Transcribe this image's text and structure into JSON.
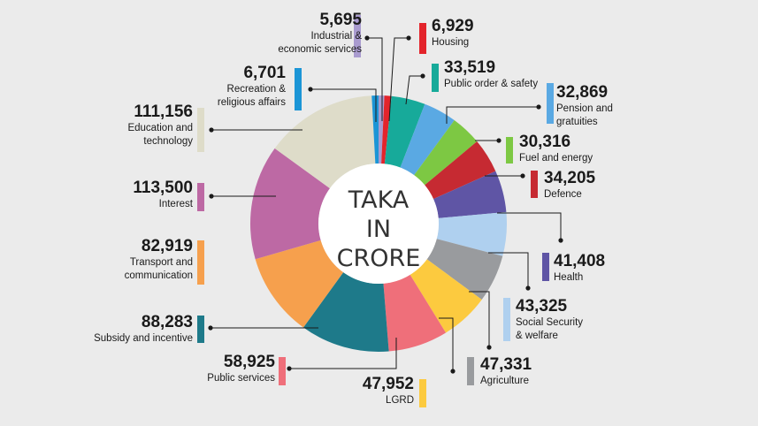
{
  "chart_data": {
    "type": "pie",
    "donut": true,
    "center_text": [
      "TAKA",
      "IN",
      "CRORE"
    ],
    "slices": [
      {
        "value": 5695,
        "value_label": "5,695",
        "label": [
          "Industrial &",
          "economic services"
        ],
        "color": "#a99bcf"
      },
      {
        "value": 6929,
        "value_label": "6,929",
        "label": [
          "Housing"
        ],
        "color": "#e3242b"
      },
      {
        "value": 33519,
        "value_label": "33,519",
        "label": [
          "Public order & safety"
        ],
        "color": "#17aa9a"
      },
      {
        "value": 32869,
        "value_label": "32,869",
        "label": [
          "Pension and",
          "gratuities"
        ],
        "color": "#5aa9e3"
      },
      {
        "value": 30316,
        "value_label": "30,316",
        "label": [
          "Fuel and energy"
        ],
        "color": "#7dc843"
      },
      {
        "value": 34205,
        "value_label": "34,205",
        "label": [
          "Defence"
        ],
        "color": "#c62a32"
      },
      {
        "value": 41408,
        "value_label": "41,408",
        "label": [
          "Health"
        ],
        "color": "#5f55a5"
      },
      {
        "value": 43325,
        "value_label": "43,325",
        "label": [
          "Social Security",
          "& welfare"
        ],
        "color": "#afd0ef"
      },
      {
        "value": 47331,
        "value_label": "47,331",
        "label": [
          "Agriculture"
        ],
        "color": "#999b9e"
      },
      {
        "value": 47952,
        "value_label": "47,952",
        "label": [
          "LGRD"
        ],
        "color": "#fcca3f"
      },
      {
        "value": 58925,
        "value_label": "58,925",
        "label": [
          "Public services"
        ],
        "color": "#ef6f7a"
      },
      {
        "value": 88283,
        "value_label": "88,283",
        "label": [
          "Subsidy and incentive"
        ],
        "color": "#1e7a8a"
      },
      {
        "value": 82919,
        "value_label": "82,919",
        "label": [
          "Transport and",
          "communication"
        ],
        "color": "#f6a04d"
      },
      {
        "value": 113500,
        "value_label": "113,500",
        "label": [
          "Interest"
        ],
        "color": "#bd69a4"
      },
      {
        "value": 111156,
        "value_label": "111,156",
        "label": [
          "Education and",
          "technology"
        ],
        "color": "#dedcc9"
      },
      {
        "value": 6701,
        "value_label": "6,701",
        "label": [
          "Recreation &",
          "religious affairs"
        ],
        "color": "#1b95d6"
      }
    ]
  }
}
